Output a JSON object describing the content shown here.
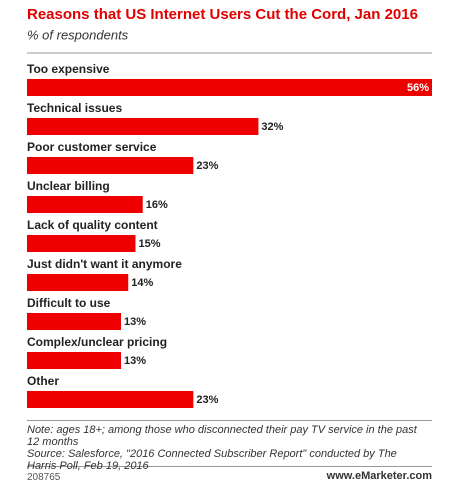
{
  "chart_data": {
    "type": "bar",
    "orientation": "horizontal",
    "title": "Reasons that US Internet Users Cut the Cord, Jan 2016",
    "subtitle": "% of respondents",
    "categories": [
      "Too expensive",
      "Technical issues",
      "Poor customer service",
      "Unclear billing",
      "Lack of quality content",
      "Just didn't want it anymore",
      "Difficult to use",
      "Complex/unclear pricing",
      "Other"
    ],
    "values": [
      56,
      32,
      23,
      16,
      15,
      14,
      13,
      13,
      23
    ],
    "value_labels": [
      "56%",
      "32%",
      "23%",
      "16%",
      "15%",
      "14%",
      "13%",
      "13%",
      "23%"
    ],
    "color": "#ee0000",
    "note": "Note: ages 18+; among those who disconnected their pay TV service in the past 12 months",
    "source": "Source: Salesforce, \"2016 Connected Subscriber Report\" conducted by The Harris Poll, Feb 19, 2016",
    "chart_id": "208765",
    "website": "www.eMarketer.com"
  }
}
